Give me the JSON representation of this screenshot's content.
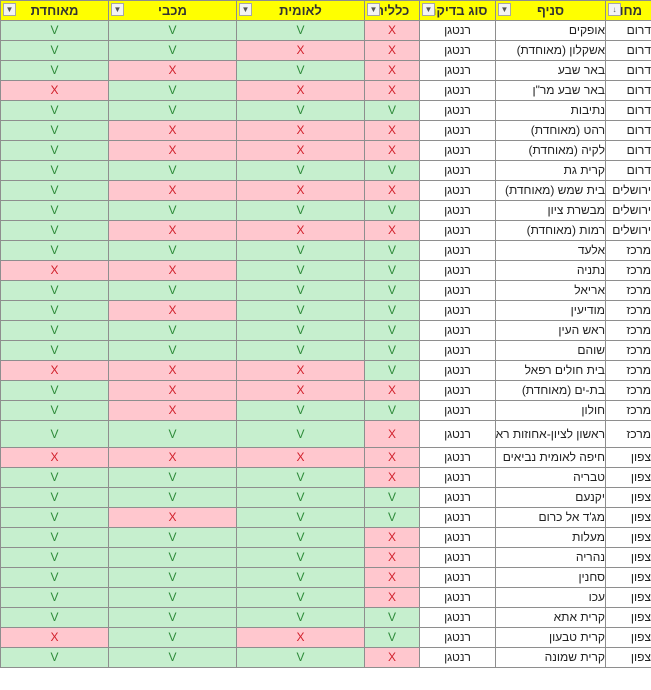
{
  "headers": {
    "district": "מחוז",
    "branch": "סניף",
    "test_type": "סוג בדיקה",
    "general": "כללית",
    "leumit": "לאומית",
    "maccabi": "מכבי",
    "meuhedet": "מאוחדת"
  },
  "filter_icons": {
    "district": "↓",
    "test_type": "▼",
    "default": "▼"
  },
  "colors": {
    "ok_fill": "#c6efce",
    "bad_fill": "#ffc7ce",
    "header_fill": "#ffff00"
  },
  "rows": [
    {
      "district": "דרום",
      "branch": "אופקים",
      "type": "רנטגן",
      "g": "X",
      "l": "V",
      "m": "V",
      "u": "V"
    },
    {
      "district": "דרום",
      "branch": "אשקלון (מאוחדת)",
      "type": "רנטגן",
      "g": "X",
      "l": "X",
      "m": "V",
      "u": "V"
    },
    {
      "district": "דרום",
      "branch": "באר שבע",
      "type": "רנטגן",
      "g": "X",
      "l": "V",
      "m": "X",
      "u": "V"
    },
    {
      "district": "דרום",
      "branch": "באר שבע מר\"ן",
      "type": "רנטגן",
      "g": "X",
      "l": "X",
      "m": "V",
      "u": "X"
    },
    {
      "district": "דרום",
      "branch": "נתיבות",
      "type": "רנטגן",
      "g": "V",
      "l": "V",
      "m": "V",
      "u": "V"
    },
    {
      "district": "דרום",
      "branch": "רהט (מאוחדת)",
      "type": "רנטגן",
      "g": "X",
      "l": "X",
      "m": "X",
      "u": "V"
    },
    {
      "district": "דרום",
      "branch": "לקיה (מאוחדת)",
      "type": "רנטגן",
      "g": "X",
      "l": "X",
      "m": "X",
      "u": "V"
    },
    {
      "district": "דרום",
      "branch": "קרית גת",
      "type": "רנטגן",
      "g": "V",
      "l": "V",
      "m": "V",
      "u": "V"
    },
    {
      "district": "ירושלים",
      "branch": "בית שמש (מאוחדת)",
      "type": "רנטגן",
      "g": "X",
      "l": "X",
      "m": "X",
      "u": "V"
    },
    {
      "district": "ירושלים",
      "branch": "מבשרת ציון",
      "type": "רנטגן",
      "g": "V",
      "l": "V",
      "m": "V",
      "u": "V"
    },
    {
      "district": "ירושלים",
      "branch": "רמות (מאוחדת)",
      "type": "רנטגן",
      "g": "X",
      "l": "X",
      "m": "X",
      "u": "V"
    },
    {
      "district": "מרכז",
      "branch": "אלעד",
      "type": "רנטגן",
      "g": "V",
      "l": "V",
      "m": "V",
      "u": "V"
    },
    {
      "district": "מרכז",
      "branch": "נתניה",
      "type": "רנטגן",
      "g": "V",
      "l": "V",
      "m": "X",
      "u": "X"
    },
    {
      "district": "מרכז",
      "branch": "אריאל",
      "type": "רנטגן",
      "g": "V",
      "l": "V",
      "m": "V",
      "u": "V"
    },
    {
      "district": "מרכז",
      "branch": "מודיעין",
      "type": "רנטגן",
      "g": "V",
      "l": "V",
      "m": "X",
      "u": "V"
    },
    {
      "district": "מרכז",
      "branch": "ראש העין",
      "type": "רנטגן",
      "g": "V",
      "l": "V",
      "m": "V",
      "u": "V"
    },
    {
      "district": "מרכז",
      "branch": "שוהם",
      "type": "רנטגן",
      "g": "V",
      "l": "V",
      "m": "V",
      "u": "V"
    },
    {
      "district": "מרכז",
      "branch": "בית חולים רפאל",
      "type": "רנטגן",
      "g": "V",
      "l": "X",
      "m": "X",
      "u": "X"
    },
    {
      "district": "מרכז",
      "branch": "בת-ים (מאוחדת)",
      "type": "רנטגן",
      "g": "X",
      "l": "X",
      "m": "X",
      "u": "V"
    },
    {
      "district": "מרכז",
      "branch": "חולון",
      "type": "רנטגן",
      "g": "V",
      "l": "V",
      "m": "X",
      "u": "V"
    },
    {
      "district": "מרכז",
      "branch": "ראשון לציון-אחוזות ראשונים",
      "type": "רנטגן",
      "g": "X",
      "l": "V",
      "m": "V",
      "u": "V",
      "tall": true
    },
    {
      "district": "צפון",
      "branch": "חיפה לאומית נביאים",
      "type": "רנטגן",
      "g": "X",
      "l": "X",
      "m": "X",
      "u": "X"
    },
    {
      "district": "צפון",
      "branch": "טבריה",
      "type": "רנטגן",
      "g": "X",
      "l": "V",
      "m": "V",
      "u": "V"
    },
    {
      "district": "צפון",
      "branch": "יקנעם",
      "type": "רנטגן",
      "g": "V",
      "l": "V",
      "m": "V",
      "u": "V"
    },
    {
      "district": "צפון",
      "branch": "מג'ד אל כרום",
      "type": "רנטגן",
      "g": "V",
      "l": "V",
      "m": "X",
      "u": "V"
    },
    {
      "district": "צפון",
      "branch": "מעלות",
      "type": "רנטגן",
      "g": "X",
      "l": "V",
      "m": "V",
      "u": "V"
    },
    {
      "district": "צפון",
      "branch": "נהריה",
      "type": "רנטגן",
      "g": "X",
      "l": "V",
      "m": "V",
      "u": "V"
    },
    {
      "district": "צפון",
      "branch": "סחנין",
      "type": "רנטגן",
      "g": "X",
      "l": "V",
      "m": "V",
      "u": "V"
    },
    {
      "district": "צפון",
      "branch": "עכו",
      "type": "רנטגן",
      "g": "X",
      "l": "V",
      "m": "V",
      "u": "V"
    },
    {
      "district": "צפון",
      "branch": "קרית אתא",
      "type": "רנטגן",
      "g": "V",
      "l": "V",
      "m": "V",
      "u": "V"
    },
    {
      "district": "צפון",
      "branch": "קרית טבעון",
      "type": "רנטגן",
      "g": "V",
      "l": "X",
      "m": "V",
      "u": "X"
    },
    {
      "district": "צפון",
      "branch": "קרית שמונה",
      "type": "רנטגן",
      "g": "X",
      "l": "V",
      "m": "V",
      "u": "V"
    }
  ]
}
